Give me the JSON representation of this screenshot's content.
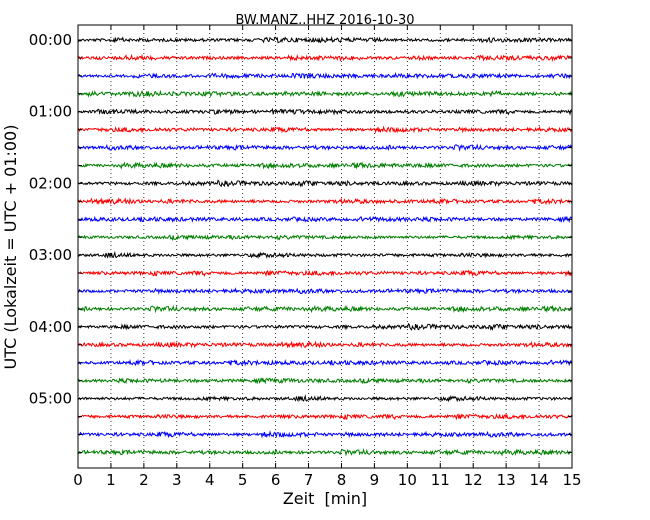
{
  "chart_data": {
    "type": "line",
    "title": "BW.MANZ..HHZ 2016-10-30",
    "xlabel": "Zeit  [min]",
    "ylabel": "UTC (Lokalzeit = UTC + 01:00)",
    "xlim": [
      0,
      15
    ],
    "xticks": [
      0,
      1,
      2,
      3,
      4,
      5,
      6,
      7,
      8,
      9,
      10,
      11,
      12,
      13,
      14,
      15
    ],
    "ytick_labels": [
      "00:00",
      "01:00",
      "02:00",
      "03:00",
      "04:00",
      "05:00"
    ],
    "trace_interval_min": 15,
    "trace_count": 24,
    "grid": "vertical-dotted",
    "colors": [
      "#000000",
      "#ff0000",
      "#0000ff",
      "#008000"
    ]
  }
}
